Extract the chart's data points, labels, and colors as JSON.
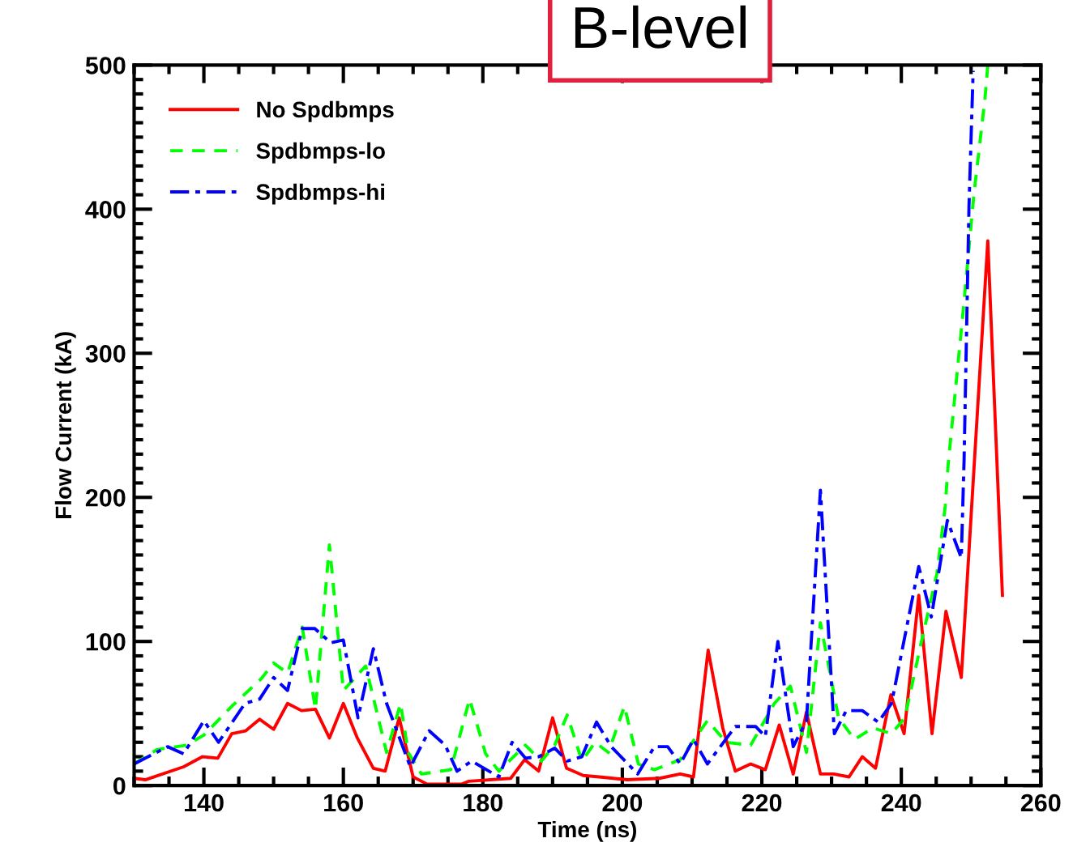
{
  "chart_data": {
    "type": "line",
    "title": "B-level",
    "xlabel": "Time (ns)",
    "ylabel": "Flow Current (kA)",
    "xlim": [
      130,
      260
    ],
    "xticks": [
      140,
      160,
      180,
      200,
      220,
      240,
      260
    ],
    "ylim": [
      0,
      500
    ],
    "yticks": [
      0,
      100,
      200,
      300,
      400,
      500
    ],
    "grid": false,
    "legend": "top left",
    "marker": "none",
    "series": [
      {
        "name": "No Spdbmps",
        "color": "#ff0000",
        "line_style": "solid",
        "x": [
          130,
          131.6,
          137.1,
          139.8,
          142,
          144,
          146,
          148,
          150,
          152,
          154,
          156,
          158,
          160,
          162,
          164.3,
          166,
          168,
          170,
          172,
          177,
          178,
          184,
          186,
          188,
          190,
          192,
          194.4,
          196.7,
          200.7,
          205.3,
          208.3,
          210.2,
          212.3,
          214.4,
          216.2,
          218.4,
          220.5,
          222.5,
          224.5,
          226.4,
          228.4,
          230.3,
          232.5,
          234.4,
          236.3,
          238.5,
          240.4,
          242.5,
          244.4,
          246.4,
          248.6,
          252.4,
          254.5
        ],
        "values": [
          5,
          4,
          13,
          20,
          19,
          36,
          38,
          46,
          39,
          57,
          52,
          53,
          33,
          57,
          33,
          12,
          10,
          47,
          6,
          1,
          1,
          3,
          5,
          18,
          10,
          47,
          12,
          7,
          6,
          4,
          5,
          8,
          6,
          94,
          40,
          10,
          15,
          11,
          42,
          8,
          51,
          8,
          8,
          6,
          20,
          12,
          63,
          36,
          132,
          36,
          121,
          75,
          378,
          132
        ]
      },
      {
        "name": "Spdbmps-lo",
        "color": "#00ff00",
        "line_style": "dashed",
        "x": [
          130,
          133.3,
          137.5,
          140,
          144,
          148.2,
          150,
          152,
          154.1,
          156,
          158,
          160,
          163.2,
          166.2,
          168.2,
          169.3,
          171.2,
          175.4,
          178.1,
          180.4,
          182.3,
          186.1,
          188.4,
          190.3,
          192.1,
          194.2,
          196.1,
          198,
          200.3,
          202.3,
          204.6,
          208.3,
          212.2,
          214.9,
          218.4,
          221.8,
          224.1,
          226.4,
          228.4,
          231,
          233.3,
          235.9,
          238.6,
          240.5,
          242.8,
          245.1,
          246.3,
          246.7,
          248.9,
          250.4,
          252,
          252.4
        ],
        "values": [
          15,
          25,
          28,
          35,
          55,
          74,
          85,
          78,
          110,
          53,
          167,
          66,
          83,
          23,
          57,
          23,
          8,
          11,
          60,
          22,
          10,
          28,
          17,
          28,
          49,
          17,
          30,
          23,
          55,
          15,
          11,
          18,
          45,
          30,
          28,
          57,
          69,
          23,
          113,
          47,
          32,
          40,
          36,
          47,
          98,
          147,
          194,
          222,
          331,
          410,
          477,
          500
        ]
      },
      {
        "name": "Spdbmps-hi",
        "color": "#0000ff",
        "line_style": "dashdot",
        "x": [
          130,
          134.8,
          137.1,
          140,
          142.1,
          145.9,
          148,
          150,
          152,
          154.1,
          155.9,
          158.2,
          160,
          162.1,
          164.3,
          166.2,
          169.6,
          172.3,
          174.6,
          176.3,
          178.4,
          182.3,
          184.2,
          186.1,
          188,
          190.3,
          192.1,
          194.2,
          196.3,
          198.4,
          202.2,
          204.6,
          206.5,
          208.3,
          210.2,
          212.2,
          216.2,
          219.1,
          220.5,
          222.3,
          224.5,
          226.4,
          228.4,
          230.4,
          232.1,
          234.4,
          236.7,
          238.6,
          242.5,
          244.3,
          246.6,
          248.6,
          249,
          249.7,
          250.3
        ],
        "values": [
          15,
          27,
          22,
          45,
          30,
          57,
          60,
          75,
          66,
          109,
          109,
          99,
          101,
          47,
          95,
          57,
          13,
          38,
          28,
          10,
          17,
          6,
          30,
          19,
          20,
          26,
          17,
          20,
          44,
          27,
          8,
          27,
          27,
          15,
          32,
          15,
          41,
          41,
          34,
          100,
          27,
          45,
          205,
          36,
          52,
          52,
          44,
          57,
          152,
          117,
          184,
          158,
          226,
          402,
          496
        ]
      }
    ]
  }
}
